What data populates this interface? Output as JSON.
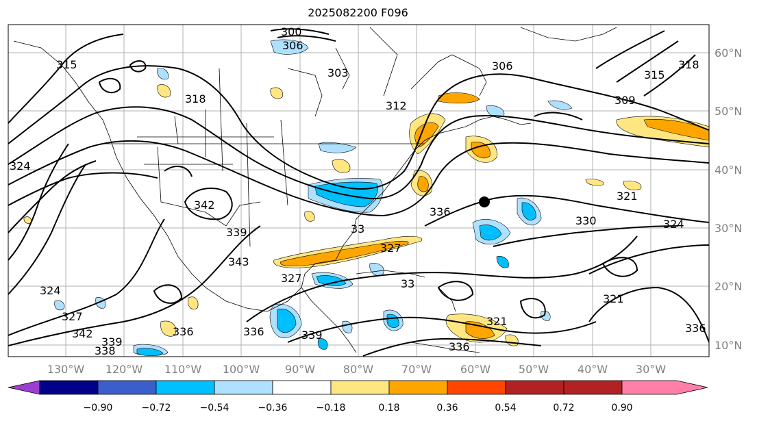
{
  "title": "2025082200 F096",
  "lon_labels": [
    "130°W",
    "120°W",
    "110°W",
    "100°W",
    "90°W",
    "80°W",
    "70°W",
    "60°W",
    "50°W",
    "40°W",
    "30°W"
  ],
  "lat_labels": [
    "60°N",
    "50°N",
    "40°N",
    "30°N",
    "20°N",
    "10°N"
  ],
  "colorbar": {
    "tick_labels": [
      "−0.90",
      "−0.72",
      "−0.54",
      "−0.36",
      "−0.18",
      "0.18",
      "0.36",
      "0.54",
      "0.72",
      "0.90"
    ],
    "colors": [
      "#9b3fd3",
      "#00008b",
      "#3a5fcd",
      "#00bfff",
      "#aee0ff",
      "#ffffff",
      "#ffe680",
      "#ffa500",
      "#ff4500",
      "#b22222",
      "#ff7fa8"
    ]
  },
  "contour_labels": [
    "300",
    "306",
    "303",
    "315",
    "318",
    "312",
    "306",
    "315",
    "318",
    "309",
    "324",
    "321",
    "342",
    "336",
    "330",
    "324",
    "339",
    "343",
    "327",
    "321",
    "324",
    "327",
    "336",
    "339",
    "336",
    "342",
    "339",
    "338",
    "336",
    "336",
    "33",
    "321",
    "327",
    "33"
  ],
  "marker": "black-dot"
}
